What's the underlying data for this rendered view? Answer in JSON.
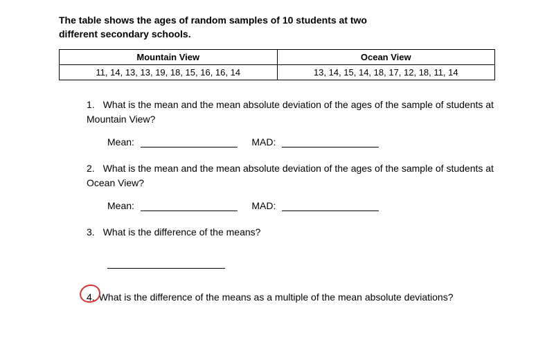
{
  "intro": {
    "line1": "The table shows the ages of random samples of 10 students at two",
    "line2": "different secondary schools."
  },
  "table": {
    "header1": "Mountain View",
    "header2": "Ocean View",
    "data1": "11, 14, 13, 13, 19, 18, 15, 16, 16, 14",
    "data2": "13, 14, 15, 14, 18, 17, 12, 18, 11, 14"
  },
  "q1": {
    "num": "1.",
    "text": "What is the mean and the mean absolute deviation of the ages of the sample of students at Mountain View?",
    "meanLabel": "Mean:",
    "madLabel": "MAD:"
  },
  "q2": {
    "num": "2.",
    "text": "What is the mean and the mean absolute deviation of the ages of the sample of students at Ocean View?",
    "meanLabel": "Mean:",
    "madLabel": "MAD:"
  },
  "q3": {
    "num": "3.",
    "text": "What is the difference of the means?"
  },
  "q4": {
    "num": "4.",
    "text": "What is the difference of the means as a multiple of the mean absolute deviations?"
  },
  "styling": {
    "circle_color": "#d93333",
    "text_color": "#000000",
    "background": "#ffffff"
  }
}
